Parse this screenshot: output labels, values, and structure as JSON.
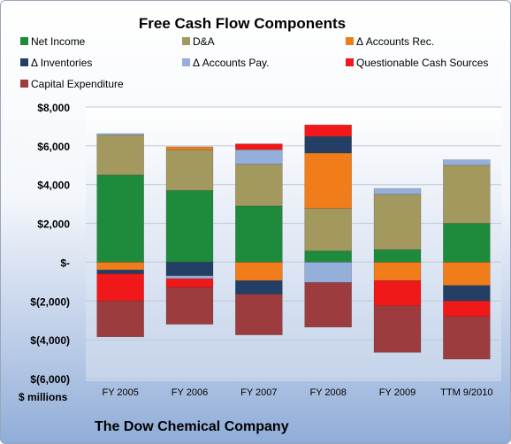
{
  "chart_data": {
    "type": "bar",
    "stacked": true,
    "title": "Free Cash Flow Components",
    "units_label": "$ millions",
    "company_label": "The Dow Chemical Company",
    "categories": [
      "FY 2005",
      "FY 2006",
      "FY 2007",
      "FY 2008",
      "FY 2009",
      "TTM 9/2010"
    ],
    "y_ticks": [
      "$8,000",
      "$6,000",
      "$4,000",
      "$2,000",
      "$-",
      "$(2,000)",
      "$(4,000)",
      "$(6,000)"
    ],
    "ylim": [
      -6000,
      8000
    ],
    "grid": true,
    "legend_position": "top",
    "series": [
      {
        "name": "Net Income",
        "color": "#1e8a3c",
        "values": [
          4500,
          3700,
          2900,
          580,
          650,
          2000
        ]
      },
      {
        "name": "D&A",
        "color": "#a3985e",
        "values": [
          2050,
          2100,
          2150,
          2200,
          2850,
          3000
        ]
      },
      {
        "name": "Δ Accounts Rec.",
        "color": "#f07c1a",
        "values": [
          -400,
          150,
          -950,
          2850,
          -950,
          -1200
        ]
      },
      {
        "name": "Δ Inventories",
        "color": "#243f66",
        "values": [
          -200,
          -700,
          -700,
          850,
          0,
          -800
        ]
      },
      {
        "name": "Δ Accounts Pay.",
        "color": "#94afd9",
        "values": [
          80,
          -150,
          750,
          -1050,
          300,
          280
        ]
      },
      {
        "name": "Questionable Cash Sources",
        "color": "#f01818",
        "values": [
          -1400,
          -450,
          300,
          600,
          -1300,
          -800
        ]
      },
      {
        "name": "Capital Expenditure",
        "color": "#9c3c3e",
        "values": [
          -1850,
          -1900,
          -2100,
          -2300,
          -2400,
          -2200
        ]
      }
    ]
  }
}
